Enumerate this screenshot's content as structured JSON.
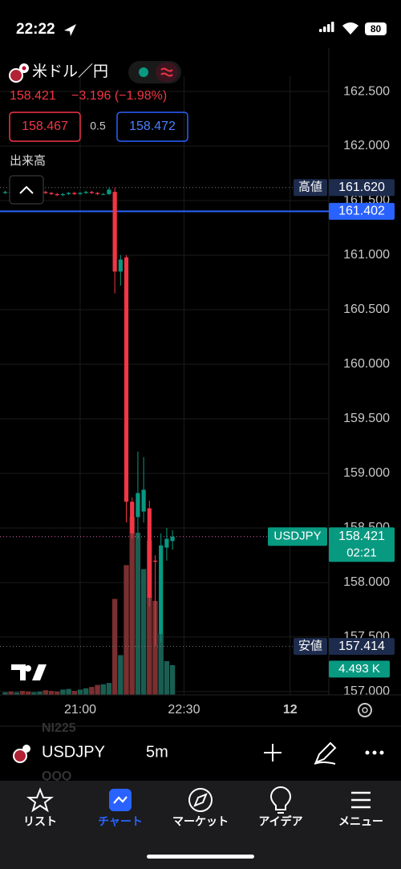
{
  "status_bar": {
    "time": "22:22",
    "battery": "80"
  },
  "header": {
    "symbol_name": "米ドル／円",
    "price": "158.421",
    "change": "−3.196 (−1.98%)",
    "bid": "158.467",
    "spread": "0.5",
    "ask": "158.472",
    "volume_title": "出来高"
  },
  "chart_data": {
    "type": "candlestick",
    "x": [
      0,
      1,
      2,
      3,
      4,
      5,
      6,
      7,
      8,
      9,
      10,
      11,
      12,
      13,
      14,
      15,
      16,
      17,
      18,
      19,
      20,
      21,
      22,
      23,
      24,
      25,
      26,
      27,
      28,
      29
    ],
    "open": [
      161.57,
      161.58,
      161.57,
      161.58,
      161.57,
      161.56,
      161.57,
      161.58,
      161.57,
      161.56,
      161.55,
      161.56,
      161.57,
      161.56,
      161.57,
      161.58,
      161.57,
      161.56,
      161.56,
      161.58,
      160.85,
      160.98,
      158.74,
      158.6,
      158.65,
      158.68,
      158.2,
      157.53,
      158.32,
      158.38
    ],
    "high": [
      161.59,
      161.59,
      161.59,
      161.59,
      161.58,
      161.58,
      161.59,
      161.59,
      161.58,
      161.57,
      161.57,
      161.58,
      161.58,
      161.58,
      161.59,
      161.59,
      161.58,
      161.57,
      161.62,
      161.62,
      161.0,
      161.0,
      158.78,
      159.2,
      159.15,
      158.75,
      158.25,
      158.45,
      158.5,
      158.48
    ],
    "low": [
      161.56,
      161.56,
      161.56,
      161.56,
      161.55,
      161.55,
      161.56,
      161.56,
      161.55,
      161.54,
      161.54,
      161.55,
      161.55,
      161.55,
      161.56,
      161.56,
      161.55,
      161.55,
      161.55,
      160.65,
      160.72,
      158.55,
      158.4,
      158.4,
      158.55,
      157.78,
      157.42,
      157.45,
      158.2,
      158.3
    ],
    "close": [
      161.58,
      161.57,
      161.58,
      161.57,
      161.56,
      161.57,
      161.58,
      161.57,
      161.56,
      161.55,
      161.56,
      161.57,
      161.56,
      161.57,
      161.58,
      161.57,
      161.56,
      161.56,
      161.6,
      160.85,
      160.96,
      158.74,
      158.45,
      158.82,
      158.85,
      157.86,
      158.19,
      158.34,
      158.4,
      158.42
    ],
    "volume": [
      0.4,
      0.5,
      0.4,
      0.6,
      0.5,
      0.4,
      0.5,
      0.7,
      0.6,
      0.5,
      0.8,
      0.9,
      0.6,
      0.8,
      1.0,
      1.2,
      1.5,
      1.6,
      1.8,
      14.5,
      6.0,
      19.6,
      26.9,
      24.5,
      19.0,
      23.3,
      14.2,
      9.3,
      5.1,
      4.493
    ],
    "up_color": "#089981",
    "down_color": "#f23645",
    "volume_up_color": "#1a5e52",
    "volume_down_color": "#7a2f30",
    "xlim": [
      -0.9,
      56.1
    ],
    "xticks": [
      {
        "value": 13,
        "label": "21:00"
      },
      {
        "value": 31,
        "label": "22:30"
      },
      {
        "value": 49.4,
        "label": "12"
      }
    ],
    "ylim": [
      156.97,
      162.64
    ],
    "yticks": [
      {
        "value": 157,
        "label": "157.000"
      },
      {
        "value": 157.5,
        "label": "157.500"
      },
      {
        "value": 158,
        "label": "158.000"
      },
      {
        "value": 158.5,
        "label": "158.500"
      },
      {
        "value": 159,
        "label": "159.000"
      },
      {
        "value": 159.5,
        "label": "159.500"
      },
      {
        "value": 160,
        "label": "160.000"
      },
      {
        "value": 160.5,
        "label": "160.500"
      },
      {
        "value": 161,
        "label": "161.000"
      },
      {
        "value": 161.5,
        "label": "161.500"
      },
      {
        "value": 162,
        "label": "162.000"
      },
      {
        "value": 162.5,
        "label": "162.500"
      }
    ],
    "volume_ylim": [
      0,
      40
    ],
    "grid": true,
    "high_line": {
      "name": "高値",
      "value": 161.62,
      "label": "161.620"
    },
    "alert_line": {
      "value": 161.402,
      "label": "161.402",
      "color": "#2962ff"
    },
    "last_price": {
      "name": "USDJPY",
      "value": 158.421,
      "label": "158.421",
      "countdown": "02:21"
    },
    "low_line": {
      "name": "安値",
      "value": 157.414,
      "label": "157.414"
    },
    "volume_label": {
      "value": 4.493,
      "label": "4.493 K"
    }
  },
  "toolbar": {
    "symbol": "USDJPY",
    "interval": "5m",
    "watchlist_above": "NI225",
    "watchlist_below": "QQQ"
  },
  "tabs": [
    {
      "label": "リスト"
    },
    {
      "label": "チャート"
    },
    {
      "label": "マーケット"
    },
    {
      "label": "アイデア"
    },
    {
      "label": "メニュー"
    }
  ]
}
